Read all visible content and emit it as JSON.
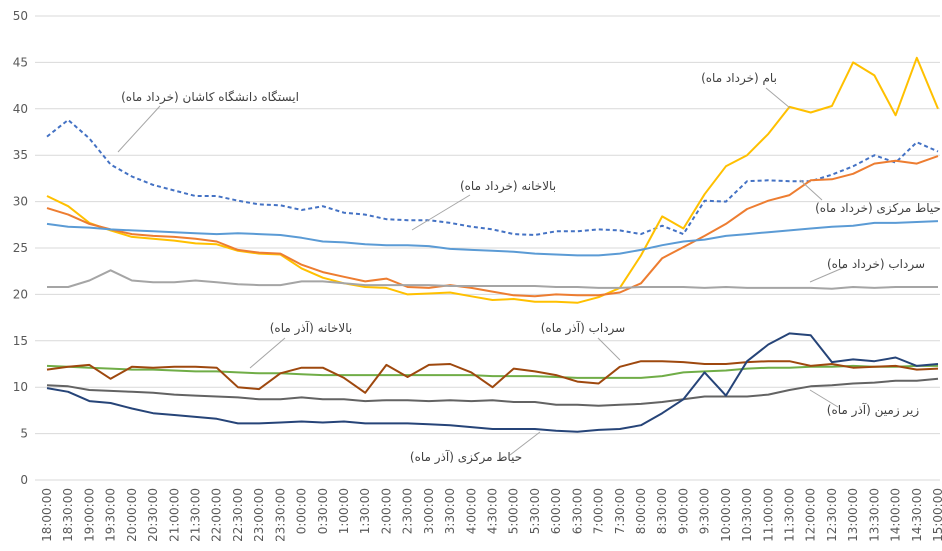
{
  "chart_data": {
    "type": "line",
    "categories": [
      "18:00:00",
      "18:30:00",
      "19:00:00",
      "19:30:00",
      "20:00:00",
      "20:30:00",
      "21:00:00",
      "21:30:00",
      "22:00:00",
      "22:30:00",
      "23:00:00",
      "23:30:00",
      "0:00:00",
      "0:30:00",
      "1:00:00",
      "1:30:00",
      "2:00:00",
      "2:30:00",
      "3:00:00",
      "3:30:00",
      "4:00:00",
      "4:30:00",
      "5:00:00",
      "5:30:00",
      "6:00:00",
      "6:30:00",
      "7:00:00",
      "7:30:00",
      "8:00:00",
      "8:30:00",
      "9:00:00",
      "9:30:00",
      "10:00:00",
      "10:30:00",
      "11:00:00",
      "11:30:00",
      "12:00:00",
      "12:30:00",
      "13:00:00",
      "13:30:00",
      "14:00:00",
      "14:30:00",
      "15:00:00"
    ],
    "ylim": [
      0,
      50
    ],
    "yticks": [
      0,
      5,
      10,
      15,
      20,
      25,
      30,
      35,
      40,
      45,
      50
    ],
    "grid": true,
    "series": [
      {
        "name": "ایستگاه دانشگاه کاشان (خرداد ماه)",
        "color": "#4472c4",
        "dashed": true,
        "values": [
          37,
          38.8,
          36.8,
          34,
          32.7,
          31.8,
          31.2,
          30.6,
          30.6,
          30.1,
          29.7,
          29.6,
          29.1,
          29.5,
          28.8,
          28.6,
          28.1,
          28,
          28,
          27.7,
          27.3,
          27,
          26.5,
          26.4,
          26.8,
          26.8,
          27,
          26.9,
          26.5,
          27.4,
          26.5,
          30.1,
          30,
          32.2,
          32.3,
          32.2,
          32.2,
          32.9,
          33.8,
          35,
          34.2,
          36.4,
          35.4
        ]
      },
      {
        "name": "بام (خرداد ماه)",
        "color": "#ffc000",
        "values": [
          30.6,
          29.5,
          27.7,
          26.9,
          26.2,
          26,
          25.8,
          25.5,
          25.4,
          24.7,
          24.4,
          24.3,
          22.8,
          21.8,
          21.2,
          20.8,
          20.7,
          20,
          20.1,
          20.2,
          19.8,
          19.4,
          19.5,
          19.2,
          19.2,
          19.1,
          19.7,
          20.7,
          24.2,
          28.4,
          27.1,
          30.8,
          33.8,
          35,
          37.3,
          40.2,
          39.6,
          40.3,
          45,
          43.6,
          39.3,
          45.5,
          40
        ]
      },
      {
        "name": "حیاط مرکزی (خرداد ماه)",
        "color": "#ed7d31",
        "values": [
          29.3,
          28.6,
          27.6,
          27,
          26.5,
          26.3,
          26.2,
          26,
          25.7,
          24.8,
          24.5,
          24.4,
          23.2,
          22.4,
          21.9,
          21.4,
          21.7,
          20.8,
          20.7,
          21,
          20.7,
          20.3,
          19.9,
          19.8,
          20,
          19.9,
          19.9,
          20.2,
          21.2,
          23.9,
          25.1,
          26.3,
          27.6,
          29.2,
          30.1,
          30.7,
          32.3,
          32.4,
          33,
          34.1,
          34.4,
          34.1,
          34.9
        ]
      },
      {
        "name": "بالاخانه (خرداد ماه)",
        "color": "#5b9bd5",
        "values": [
          27.6,
          27.3,
          27.2,
          27,
          26.9,
          26.8,
          26.7,
          26.6,
          26.5,
          26.6,
          26.5,
          26.4,
          26.1,
          25.7,
          25.6,
          25.4,
          25.3,
          25.3,
          25.2,
          24.9,
          24.8,
          24.7,
          24.6,
          24.4,
          24.3,
          24.2,
          24.2,
          24.4,
          24.8,
          25.3,
          25.7,
          25.9,
          26.3,
          26.5,
          26.7,
          26.9,
          27.1,
          27.3,
          27.4,
          27.7,
          27.7,
          27.8,
          27.9
        ]
      },
      {
        "name": "سرداب (خرداد ماه)",
        "color": "#a5a5a5",
        "values": [
          20.8,
          20.8,
          21.5,
          22.6,
          21.5,
          21.3,
          21.3,
          21.5,
          21.3,
          21.1,
          21,
          21,
          21.4,
          21.4,
          21.2,
          21,
          21,
          21,
          21,
          20.9,
          20.9,
          20.9,
          20.9,
          20.9,
          20.8,
          20.8,
          20.7,
          20.7,
          20.8,
          20.8,
          20.8,
          20.7,
          20.8,
          20.7,
          20.7,
          20.7,
          20.7,
          20.6,
          20.8,
          20.7,
          20.8,
          20.8,
          20.8
        ]
      },
      {
        "name": "بالاخانه (آذر ماه)",
        "color": "#70ad47",
        "values": [
          12.3,
          12.2,
          12.1,
          12,
          11.9,
          11.9,
          11.8,
          11.7,
          11.7,
          11.6,
          11.5,
          11.5,
          11.4,
          11.3,
          11.3,
          11.3,
          11.3,
          11.3,
          11.3,
          11.3,
          11.3,
          11.2,
          11.2,
          11.2,
          11.1,
          11,
          11,
          11,
          11,
          11.2,
          11.6,
          11.7,
          11.8,
          12,
          12.1,
          12.1,
          12.2,
          12.2,
          12.3,
          12.2,
          12.2,
          12.3,
          12.3
        ]
      },
      {
        "name": "سرداب (آذر ماه)",
        "color": "#9e480e",
        "values": [
          11.9,
          12.2,
          12.4,
          10.9,
          12.2,
          12.1,
          12.2,
          12.2,
          12.1,
          10,
          9.8,
          11.5,
          12.1,
          12.1,
          11,
          9.4,
          12.4,
          11.1,
          12.4,
          12.5,
          11.6,
          10,
          12,
          11.7,
          11.3,
          10.6,
          10.4,
          12.2,
          12.8,
          12.8,
          12.7,
          12.5,
          12.5,
          12.7,
          12.8,
          12.8,
          12.3,
          12.5,
          12.1,
          12.2,
          12.3,
          11.9,
          12
        ]
      },
      {
        "name": "زیر زمین (آذر ماه)",
        "color": "#636363",
        "values": [
          10.2,
          10.1,
          9.7,
          9.6,
          9.5,
          9.4,
          9.2,
          9.1,
          9,
          8.9,
          8.7,
          8.7,
          8.9,
          8.7,
          8.7,
          8.5,
          8.6,
          8.6,
          8.5,
          8.6,
          8.5,
          8.6,
          8.4,
          8.4,
          8.1,
          8.1,
          8,
          8.1,
          8.2,
          8.4,
          8.7,
          9,
          9,
          9,
          9.2,
          9.7,
          10.1,
          10.2,
          10.4,
          10.5,
          10.7,
          10.7,
          10.9
        ]
      },
      {
        "name": "حیاط مرکزی (آذر ماه)",
        "color": "#264478",
        "values": [
          9.9,
          9.5,
          8.5,
          8.3,
          7.7,
          7.2,
          7,
          6.8,
          6.6,
          6.1,
          6.1,
          6.2,
          6.3,
          6.2,
          6.3,
          6.1,
          6.1,
          6.1,
          6,
          5.9,
          5.7,
          5.5,
          5.5,
          5.5,
          5.3,
          5.2,
          5.4,
          5.5,
          5.9,
          7.2,
          8.7,
          11.6,
          9.1,
          12.8,
          14.6,
          15.8,
          15.6,
          12.7,
          13,
          12.8,
          13.2,
          12.3,
          12.5
        ]
      }
    ]
  }
}
